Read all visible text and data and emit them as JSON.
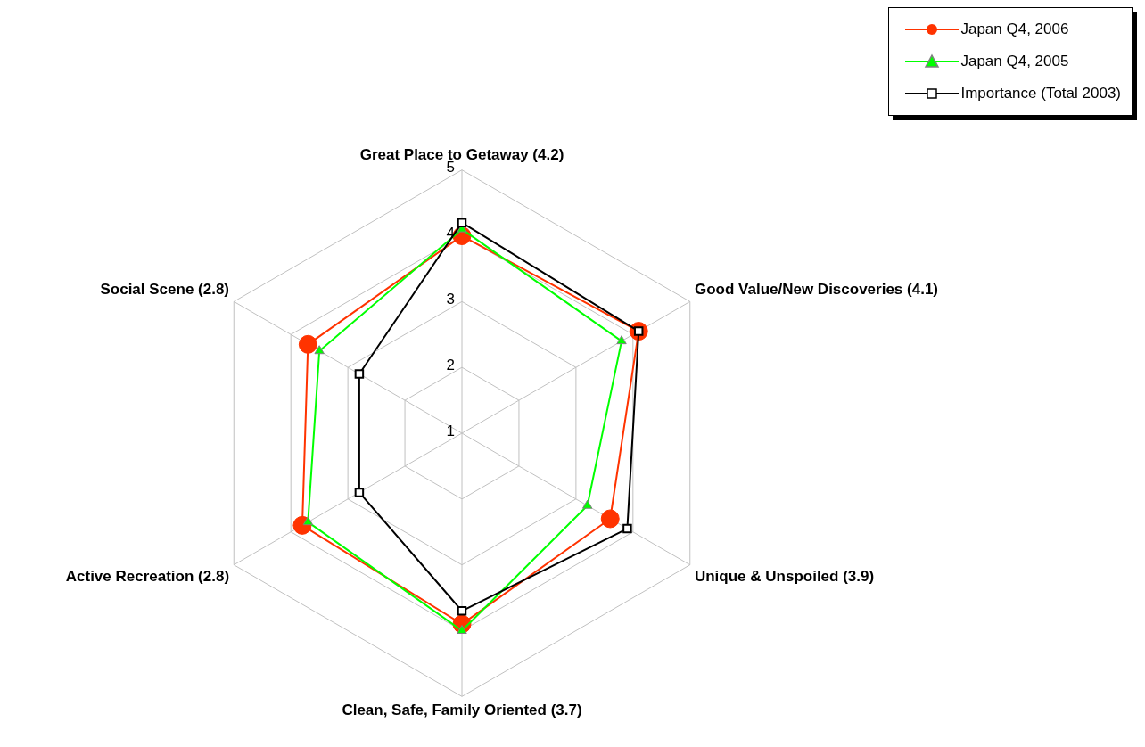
{
  "chart_data": {
    "type": "radar",
    "categories": [
      "Great Place to Getaway (4.2)",
      "Good Value/New Discoveries (4.1)",
      "Unique & Unspoiled (3.9)",
      "Clean, Safe, Family Oriented (3.7)",
      "Active Recreation (2.8)",
      "Social Scene (2.8)"
    ],
    "series": [
      {
        "name": "Japan Q4, 2006",
        "color": "#ff3300",
        "marker": "circle",
        "values": [
          4.0,
          4.1,
          3.6,
          3.9,
          3.8,
          3.7
        ]
      },
      {
        "name": "Japan Q4, 2005",
        "color": "#00ff00",
        "marker": "triangle",
        "values": [
          4.1,
          3.8,
          3.2,
          4.0,
          3.7,
          3.5
        ]
      },
      {
        "name": "Importance (Total 2003)",
        "color": "#000000",
        "marker": "square",
        "values": [
          4.2,
          4.1,
          3.9,
          3.7,
          2.8,
          2.8
        ]
      }
    ],
    "ylim": [
      1,
      5
    ],
    "yticks": [
      1,
      2,
      3,
      4,
      5
    ],
    "grid": true,
    "legend": "top right"
  }
}
